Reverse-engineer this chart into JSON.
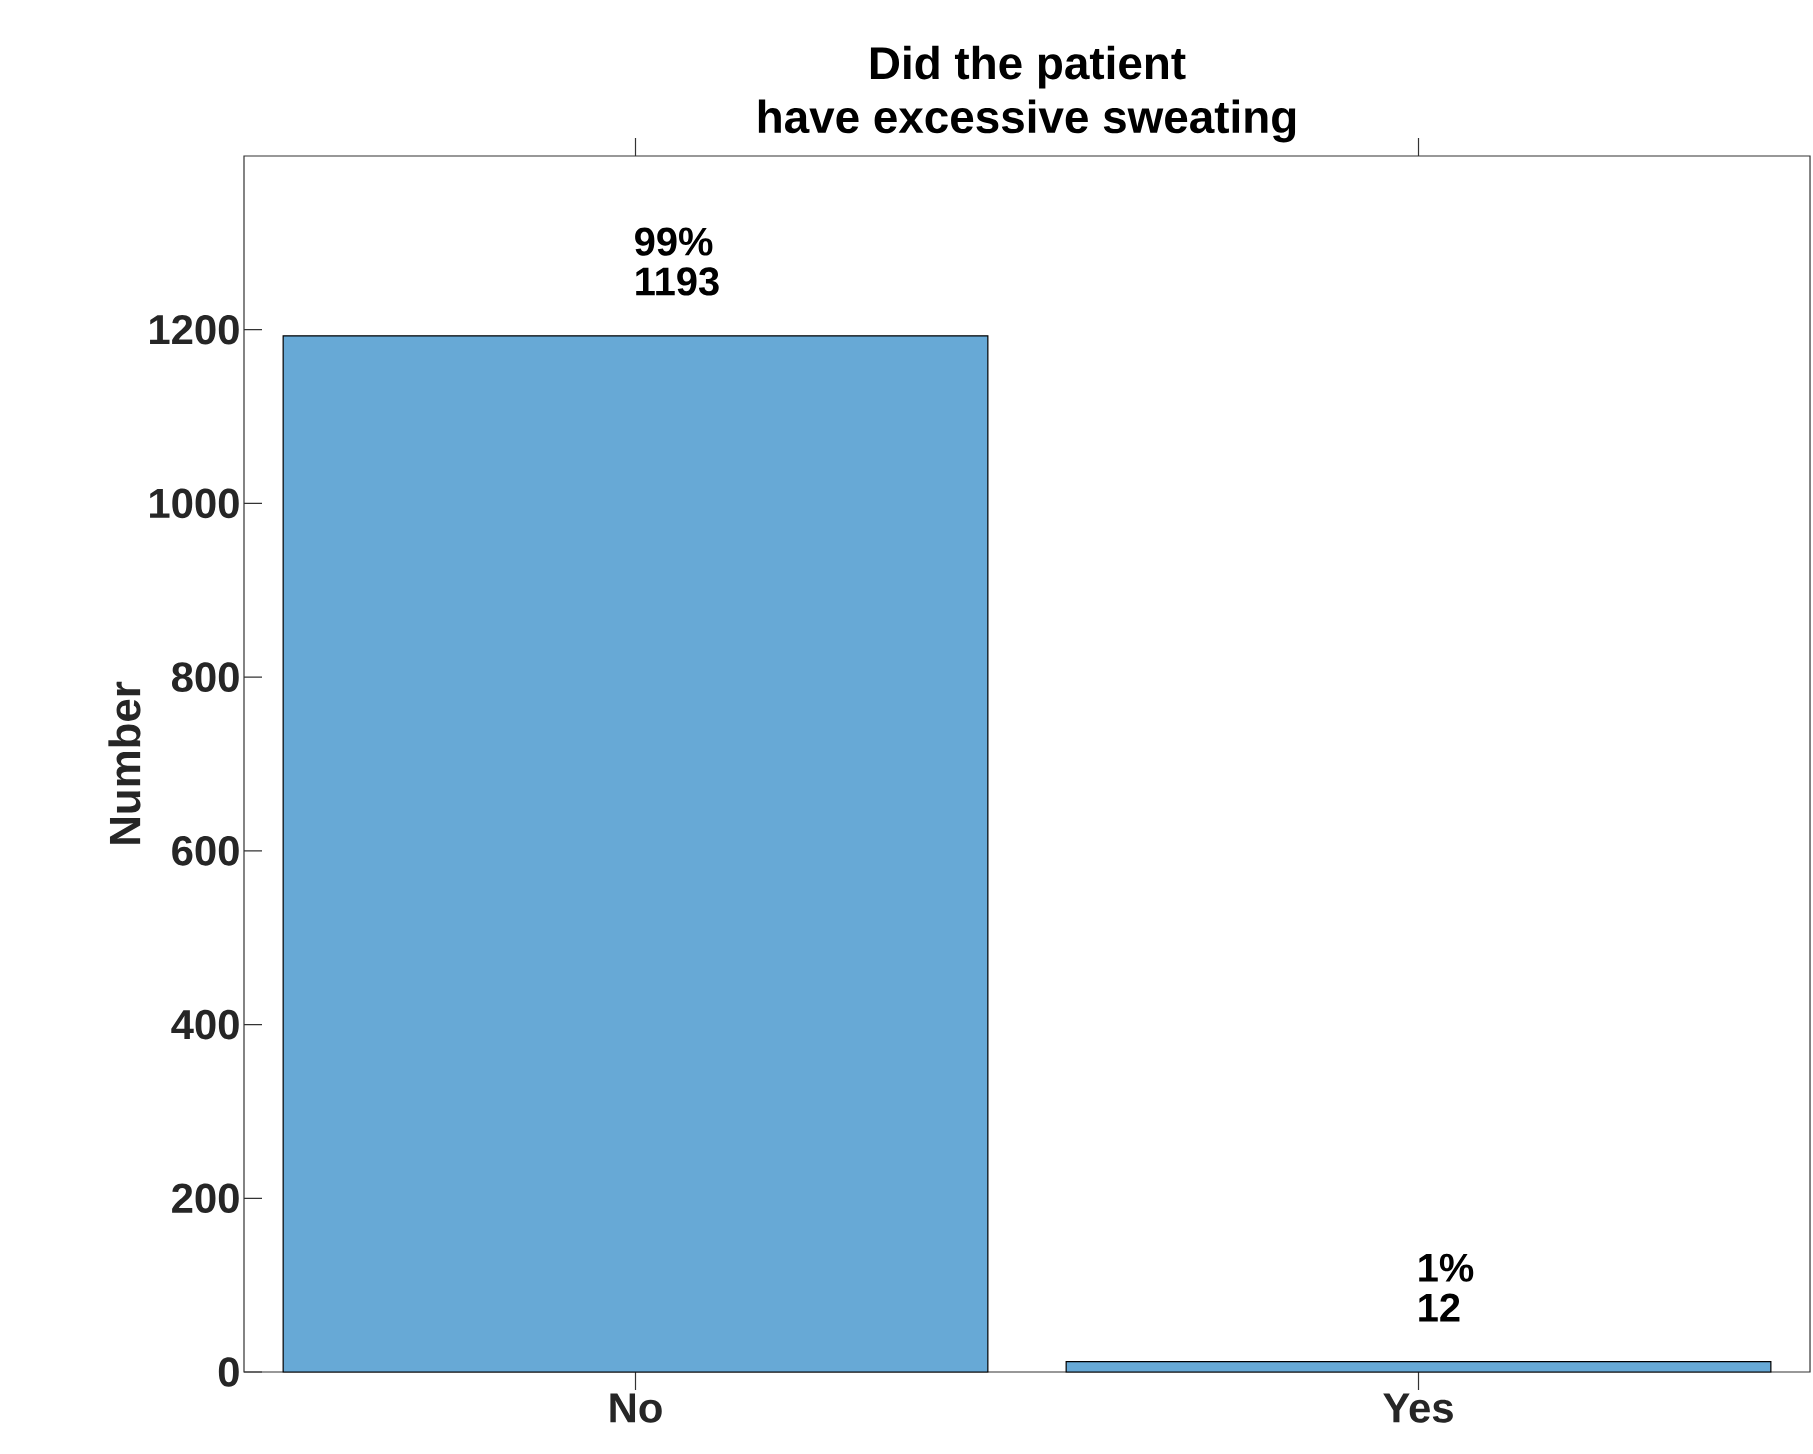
{
  "chart_data": {
    "type": "bar",
    "title": "Did the patient\nhave excessive sweating",
    "ylabel": "Number",
    "categories": [
      "No",
      "Yes"
    ],
    "values": [
      1193,
      12
    ],
    "color": "#67a9d6",
    "ylim": [
      0,
      1400
    ],
    "yticks": [
      0,
      200,
      400,
      600,
      800,
      1000,
      1200
    ],
    "value_labels": [
      "99%\n1193",
      "1%\n12"
    ]
  }
}
